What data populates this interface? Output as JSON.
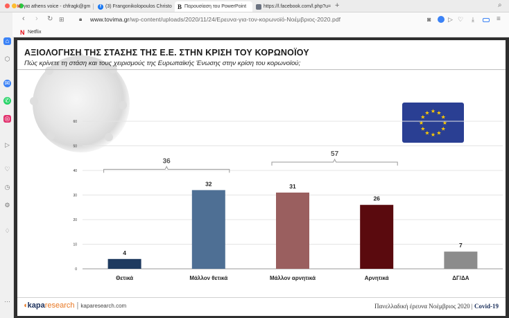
{
  "browser": {
    "tabs": [
      {
        "label": "για athens voice - chfragk@gm",
        "icon": "gmail-icon",
        "color": "#d93025",
        "glyph": "M"
      },
      {
        "label": "(3) Frangonikolopoulos Christo",
        "icon": "facebook-icon",
        "color": "#1877f2",
        "glyph": "f"
      },
      {
        "label": "Παρουσίαση του PowerPoint",
        "icon": "bing-icon",
        "color": "#1a1a1a",
        "glyph": "B"
      },
      {
        "label": "https://l.facebook.com/l.php?u=",
        "icon": "page-icon",
        "color": "#6b7280",
        "glyph": ""
      }
    ],
    "url_host": "www.tovima.gr",
    "url_path": "/wp-content/uploads/2020/11/24/Ερευνα-για-τον-κορωνοϊό-Νοέμβριος-2020.pdf",
    "bookmark": "Netflix"
  },
  "slide": {
    "title": "ΑΞΙΟΛΟΓΗΣΗ ΤΗΣ ΣΤΑΣΗΣ ΤΗΣ Ε.Ε. ΣΤΗΝ ΚΡΙΣΗ ΤΟΥ ΚΟΡΩΝΟΪΟΥ",
    "subtitle": "Πώς κρίνετε τη στάση και τους χειρισμούς της Ευρωπαϊκής Ένωσης στην κρίση του κορωνοϊού;",
    "logo_brand": "kapa",
    "logo_research": "research",
    "logo_site": "kaparesearch.com",
    "footer_left": "Πανελλαδική έρευνα Νοέμβριος 2020",
    "footer_right": "Covid-19"
  },
  "chart_data": {
    "type": "bar",
    "categories": [
      "Θετικά",
      "Μάλλον θετικά",
      "Μάλλον αρνητικά",
      "Αρνητικά",
      "ΔΓ/ΔΑ"
    ],
    "values": [
      4,
      32,
      31,
      26,
      7
    ],
    "colors": [
      "#1e3a5f",
      "#4e6f94",
      "#9a5f5f",
      "#5a0a0e",
      "#8c8c8c"
    ],
    "ylim": [
      0,
      60
    ],
    "yticks": [
      0,
      10,
      20,
      30,
      40,
      50,
      60
    ],
    "groups": [
      {
        "label": "36",
        "from": 0,
        "to": 1
      },
      {
        "label": "57",
        "from": 2,
        "to": 3
      }
    ],
    "title": "",
    "xlabel": "",
    "ylabel": ""
  }
}
